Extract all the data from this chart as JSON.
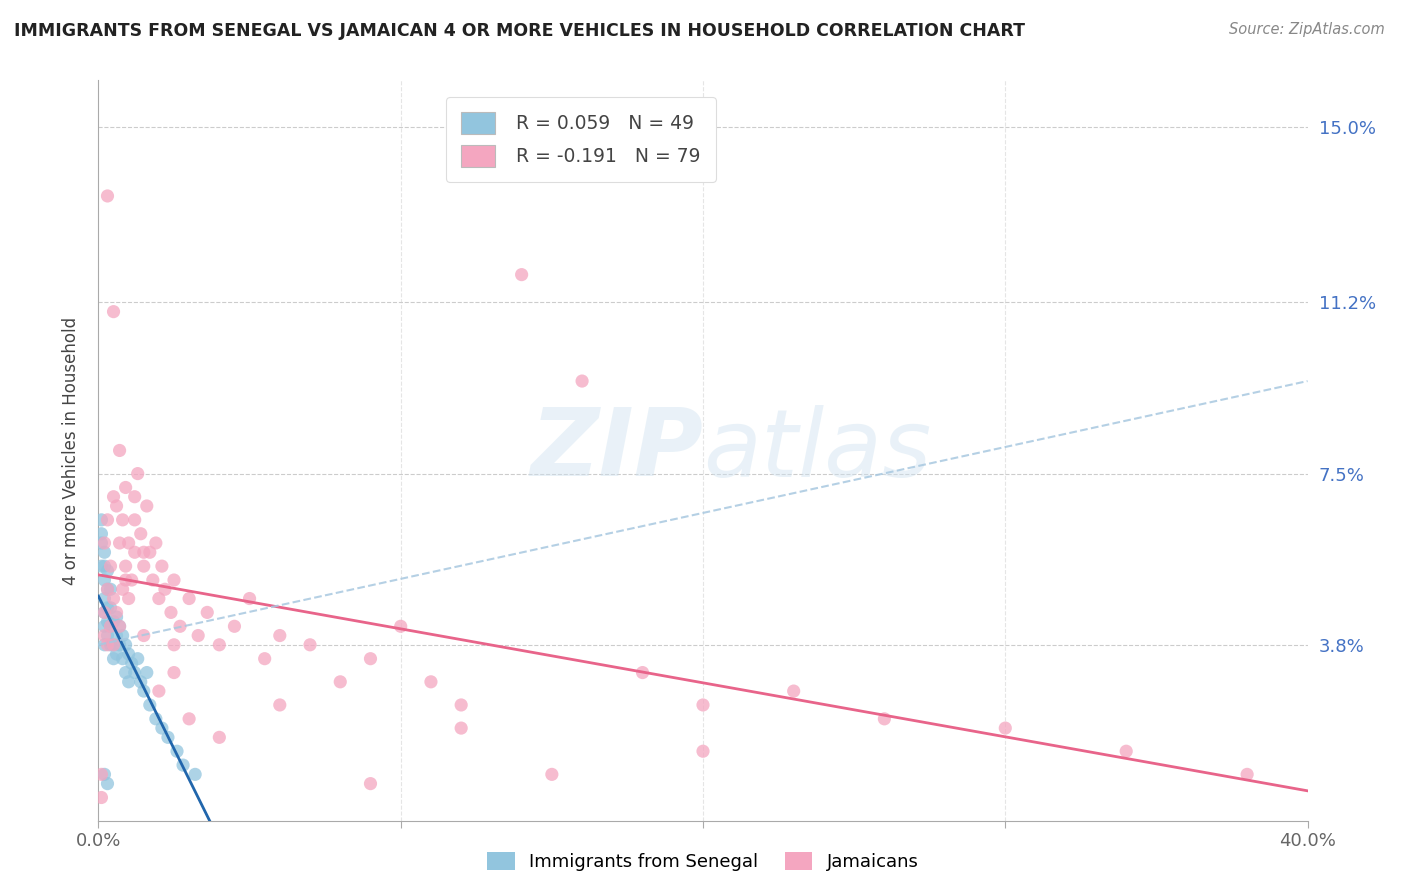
{
  "title": "IMMIGRANTS FROM SENEGAL VS JAMAICAN 4 OR MORE VEHICLES IN HOUSEHOLD CORRELATION CHART",
  "source": "Source: ZipAtlas.com",
  "ylabel": "4 or more Vehicles in Household",
  "ytick_labels": [
    "15.0%",
    "11.2%",
    "7.5%",
    "3.8%"
  ],
  "ytick_values": [
    0.15,
    0.112,
    0.075,
    0.038
  ],
  "xlim": [
    0.0,
    0.4
  ],
  "ylim": [
    0.0,
    0.16
  ],
  "senegal_R": 0.059,
  "senegal_N": 49,
  "jamaican_R": -0.191,
  "jamaican_N": 79,
  "senegal_color": "#92c5de",
  "jamaican_color": "#f4a6c0",
  "senegal_line_color": "#2166ac",
  "jamaican_line_color": "#e8648a",
  "dashed_line_color": "#a8c8e0",
  "watermark": "ZIPatlas",
  "senegal_x": [
    0.001,
    0.001,
    0.001,
    0.001,
    0.002,
    0.002,
    0.002,
    0.002,
    0.002,
    0.002,
    0.002,
    0.003,
    0.003,
    0.003,
    0.003,
    0.003,
    0.004,
    0.004,
    0.004,
    0.004,
    0.005,
    0.005,
    0.005,
    0.006,
    0.006,
    0.006,
    0.007,
    0.007,
    0.008,
    0.008,
    0.009,
    0.009,
    0.01,
    0.01,
    0.011,
    0.012,
    0.013,
    0.014,
    0.015,
    0.016,
    0.017,
    0.019,
    0.021,
    0.023,
    0.026,
    0.028,
    0.032,
    0.002,
    0.003
  ],
  "senegal_y": [
    0.055,
    0.06,
    0.062,
    0.065,
    0.038,
    0.042,
    0.045,
    0.048,
    0.052,
    0.055,
    0.058,
    0.04,
    0.043,
    0.046,
    0.05,
    0.054,
    0.038,
    0.042,
    0.046,
    0.05,
    0.035,
    0.038,
    0.043,
    0.036,
    0.04,
    0.044,
    0.038,
    0.042,
    0.035,
    0.04,
    0.032,
    0.038,
    0.03,
    0.036,
    0.034,
    0.032,
    0.035,
    0.03,
    0.028,
    0.032,
    0.025,
    0.022,
    0.02,
    0.018,
    0.015,
    0.012,
    0.01,
    0.01,
    0.008
  ],
  "jamaican_x": [
    0.001,
    0.001,
    0.002,
    0.002,
    0.002,
    0.003,
    0.003,
    0.003,
    0.004,
    0.004,
    0.005,
    0.005,
    0.005,
    0.006,
    0.006,
    0.007,
    0.007,
    0.008,
    0.008,
    0.009,
    0.009,
    0.01,
    0.01,
    0.011,
    0.012,
    0.012,
    0.013,
    0.014,
    0.015,
    0.016,
    0.017,
    0.018,
    0.019,
    0.02,
    0.021,
    0.022,
    0.024,
    0.025,
    0.027,
    0.03,
    0.033,
    0.036,
    0.04,
    0.045,
    0.05,
    0.055,
    0.06,
    0.07,
    0.08,
    0.09,
    0.1,
    0.11,
    0.12,
    0.14,
    0.16,
    0.18,
    0.2,
    0.23,
    0.26,
    0.3,
    0.34,
    0.38,
    0.003,
    0.005,
    0.007,
    0.009,
    0.012,
    0.015,
    0.02,
    0.025,
    0.03,
    0.04,
    0.015,
    0.025,
    0.06,
    0.12,
    0.2,
    0.15,
    0.09
  ],
  "jamaican_y": [
    0.01,
    0.005,
    0.04,
    0.045,
    0.06,
    0.038,
    0.05,
    0.065,
    0.042,
    0.055,
    0.038,
    0.048,
    0.07,
    0.045,
    0.068,
    0.042,
    0.06,
    0.05,
    0.065,
    0.055,
    0.072,
    0.048,
    0.06,
    0.052,
    0.058,
    0.065,
    0.075,
    0.062,
    0.055,
    0.068,
    0.058,
    0.052,
    0.06,
    0.048,
    0.055,
    0.05,
    0.045,
    0.052,
    0.042,
    0.048,
    0.04,
    0.045,
    0.038,
    0.042,
    0.048,
    0.035,
    0.04,
    0.038,
    0.03,
    0.035,
    0.042,
    0.03,
    0.025,
    0.118,
    0.095,
    0.032,
    0.025,
    0.028,
    0.022,
    0.02,
    0.015,
    0.01,
    0.135,
    0.11,
    0.08,
    0.052,
    0.07,
    0.04,
    0.028,
    0.032,
    0.022,
    0.018,
    0.058,
    0.038,
    0.025,
    0.02,
    0.015,
    0.01,
    0.008
  ]
}
